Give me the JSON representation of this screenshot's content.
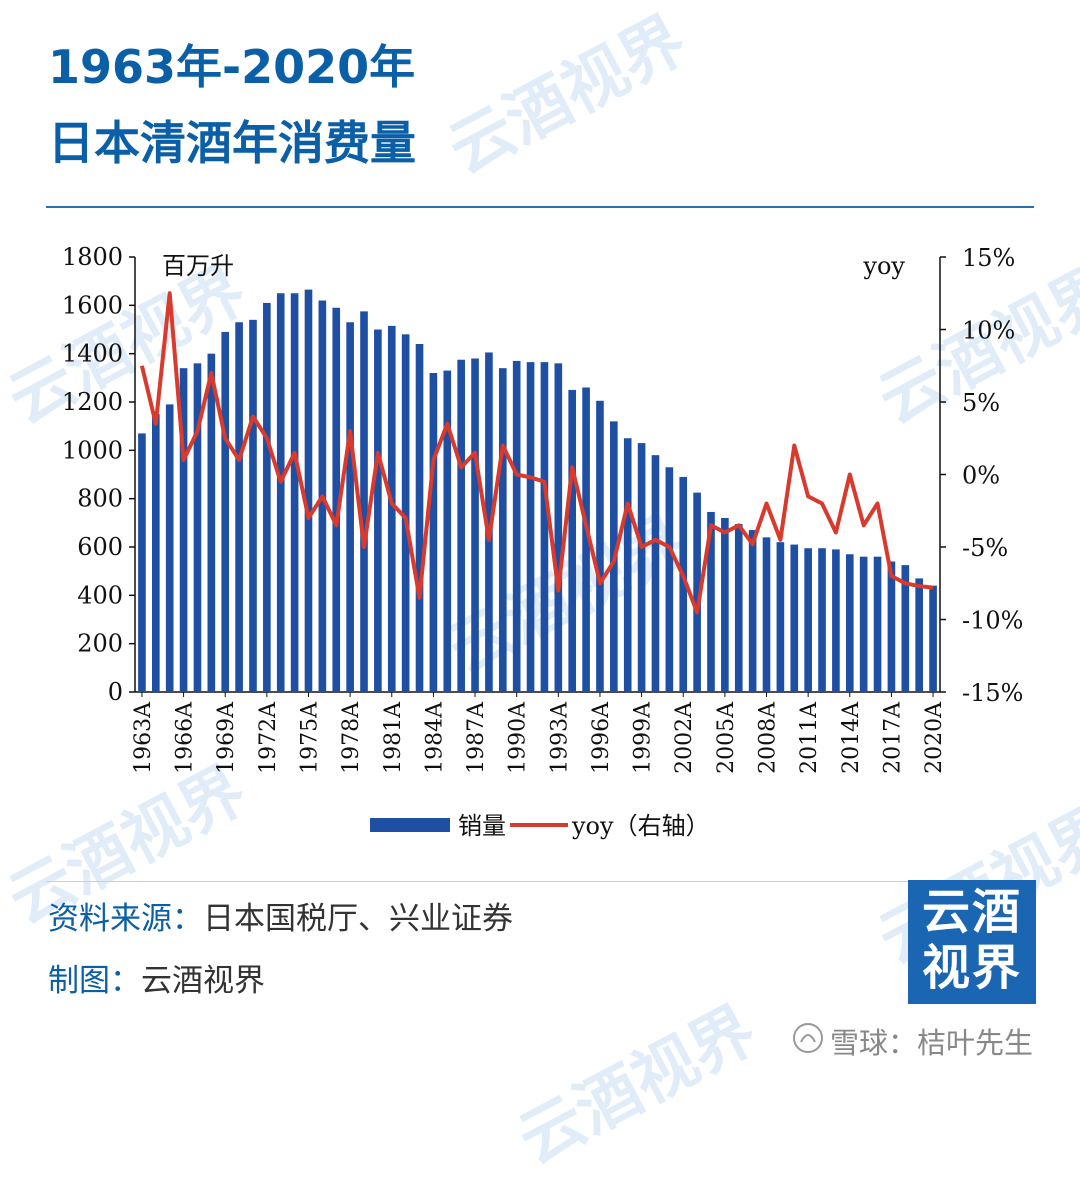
{
  "header": {
    "title_line1": "1963年-2020年",
    "title_line2": "日本清酒年消费量"
  },
  "footer": {
    "source_label": "资料来源：",
    "source_value": "日本国税厅、兴业证券",
    "credit_label": "制图：",
    "credit_value": "云酒视界",
    "logo_line1": "云酒",
    "logo_line2": "视界",
    "xueqiu_credit": "雪球：桔叶先生"
  },
  "watermark_text": "云酒视界",
  "colors": {
    "brand_blue": "#0a5fa6",
    "bar_blue": "#1f4fa3",
    "line_red": "#d83a2e"
  },
  "chart_data": {
    "type": "bar",
    "unit_left": "百万升",
    "unit_right": "yoy",
    "x_tick_labels": [
      "1963A",
      "1966A",
      "1969A",
      "1972A",
      "1975A",
      "1978A",
      "1981A",
      "1984A",
      "1987A",
      "1990A",
      "1993A",
      "1996A",
      "1999A",
      "2002A",
      "2005A",
      "2008A",
      "2011A",
      "2014A",
      "2017A",
      "2020A"
    ],
    "y_left_ticks": [
      "0",
      "200",
      "400",
      "600",
      "800",
      "1000",
      "1200",
      "1400",
      "1600",
      "1800"
    ],
    "y_right_ticks": [
      "-15%",
      "-10%",
      "-5%",
      "0%",
      "5%",
      "10%",
      "15%"
    ],
    "ylim_left": [
      0,
      1800
    ],
    "ylim_right": [
      -15,
      15
    ],
    "legend": {
      "bar": "销量",
      "line": "yoy（右轴）"
    },
    "legend_position": "bottom",
    "categories": [
      "1963A",
      "1964A",
      "1965A",
      "1966A",
      "1967A",
      "1968A",
      "1969A",
      "1970A",
      "1971A",
      "1972A",
      "1973A",
      "1974A",
      "1975A",
      "1976A",
      "1977A",
      "1978A",
      "1979A",
      "1980A",
      "1981A",
      "1982A",
      "1983A",
      "1984A",
      "1985A",
      "1986A",
      "1987A",
      "1988A",
      "1989A",
      "1990A",
      "1991A",
      "1992A",
      "1993A",
      "1994A",
      "1995A",
      "1996A",
      "1997A",
      "1998A",
      "1999A",
      "2000A",
      "2001A",
      "2002A",
      "2003A",
      "2004A",
      "2005A",
      "2006A",
      "2007A",
      "2008A",
      "2009A",
      "2010A",
      "2011A",
      "2012A",
      "2013A",
      "2014A",
      "2015A",
      "2016A",
      "2017A",
      "2018A",
      "2019A",
      "2020A"
    ],
    "series": [
      {
        "name": "销量",
        "axis": "left",
        "type": "bar",
        "values": [
          1070,
          1150,
          1190,
          1340,
          1360,
          1400,
          1490,
          1530,
          1540,
          1610,
          1650,
          1650,
          1665,
          1620,
          1590,
          1530,
          1575,
          1500,
          1515,
          1480,
          1440,
          1320,
          1330,
          1375,
          1380,
          1405,
          1340,
          1370,
          1365,
          1365,
          1360,
          1250,
          1260,
          1205,
          1120,
          1050,
          1030,
          980,
          930,
          890,
          825,
          745,
          720,
          695,
          670,
          640,
          620,
          610,
          595,
          595,
          590,
          570,
          560,
          560,
          540,
          525,
          470,
          440
        ]
      },
      {
        "name": "yoy（右轴）",
        "axis": "right",
        "type": "line",
        "values": [
          7.5,
          3.5,
          12.5,
          1.0,
          3.0,
          7.0,
          2.5,
          1.0,
          4.0,
          2.5,
          -0.5,
          1.5,
          -3.0,
          -1.5,
          -3.5,
          3.0,
          -5.0,
          1.5,
          -2.0,
          -3.0,
          -8.5,
          1.0,
          3.5,
          0.5,
          1.5,
          -4.5,
          2.0,
          0.0,
          -0.2,
          -0.5,
          -8.0,
          0.5,
          -3.5,
          -7.5,
          -6.0,
          -2.0,
          -5.0,
          -4.5,
          -5.0,
          -7.0,
          -9.5,
          -3.5,
          -4.0,
          -3.5,
          -4.8,
          -2.0,
          -4.5,
          2.0,
          -1.5,
          -2.0,
          -4.0,
          0.0,
          -3.5,
          -2.0,
          -7.0,
          -7.5,
          -7.7,
          -7.8
        ]
      }
    ]
  }
}
